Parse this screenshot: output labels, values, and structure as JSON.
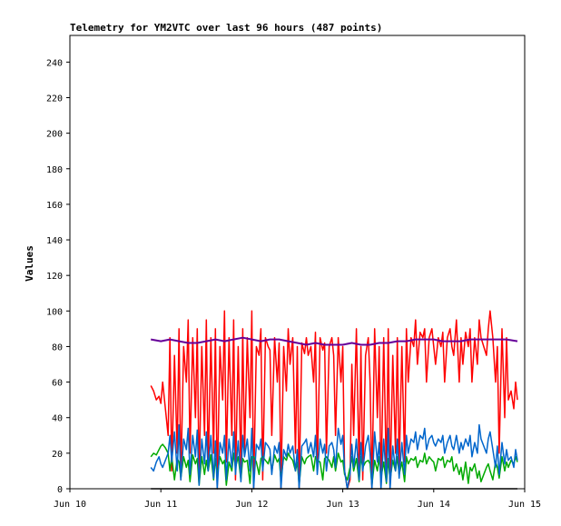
{
  "chart_data": {
    "type": "line",
    "title": "Telemetry for YM2VTC over last 96 hours (487 points)",
    "ylabel": "Values",
    "xlabel": "",
    "ylim": [
      0,
      255
    ],
    "xlim": [
      0,
      5
    ],
    "x_unit": "days since Jun 10",
    "yticks": [
      0,
      20,
      40,
      60,
      80,
      100,
      120,
      140,
      160,
      180,
      200,
      220,
      240
    ],
    "yticks_labels": [
      "0",
      "20",
      "40",
      "60",
      "80",
      "100",
      "120",
      "140",
      "160",
      "180",
      "200",
      "220",
      "240"
    ],
    "xticks": [
      0,
      1,
      2,
      3,
      4,
      5
    ],
    "xticks_labels": [
      "Jun 10",
      "Jun 11",
      "Jun 12",
      "Jun 13",
      "Jun 14",
      "Jun 15"
    ],
    "grid": false,
    "legend": "none",
    "series": [
      {
        "color": "#ff0000",
        "x": [
          0.89,
          0.92,
          0.95,
          0.98,
          1.0,
          1.02,
          1.05,
          1.08,
          1.1,
          1.12,
          1.15,
          1.18,
          1.2,
          1.22,
          1.25,
          1.28,
          1.3,
          1.32,
          1.35,
          1.38,
          1.4,
          1.42,
          1.45,
          1.48,
          1.5,
          1.52,
          1.55,
          1.58,
          1.6,
          1.62,
          1.65,
          1.68,
          1.7,
          1.72,
          1.75,
          1.78,
          1.8,
          1.82,
          1.85,
          1.88,
          1.9,
          1.92,
          1.95,
          1.98,
          2.0,
          2.02,
          2.05,
          2.08,
          2.1,
          2.12,
          2.15,
          2.18,
          2.2,
          2.22,
          2.25,
          2.28,
          2.3,
          2.32,
          2.35,
          2.38,
          2.4,
          2.42,
          2.45,
          2.48,
          2.5,
          2.52,
          2.55,
          2.58,
          2.6,
          2.62,
          2.65,
          2.68,
          2.7,
          2.72,
          2.75,
          2.78,
          2.8,
          2.82,
          2.85,
          2.88,
          2.9,
          2.92,
          2.95,
          2.98,
          3.0,
          3.02,
          3.05,
          3.08,
          3.1,
          3.12,
          3.15,
          3.18,
          3.2,
          3.22,
          3.25,
          3.28,
          3.3,
          3.32,
          3.35,
          3.38,
          3.4,
          3.42,
          3.45,
          3.48,
          3.5,
          3.52,
          3.55,
          3.58,
          3.6,
          3.62,
          3.65,
          3.68,
          3.7,
          3.72,
          3.75,
          3.78,
          3.8,
          3.82,
          3.85,
          3.88,
          3.9,
          3.92,
          3.95,
          3.98,
          4.0,
          4.02,
          4.05,
          4.08,
          4.1,
          4.12,
          4.15,
          4.18,
          4.2,
          4.22,
          4.25,
          4.28,
          4.3,
          4.32,
          4.35,
          4.38,
          4.4,
          4.42,
          4.45,
          4.48,
          4.5,
          4.52,
          4.55,
          4.58,
          4.6,
          4.62,
          4.65,
          4.68,
          4.7,
          4.72,
          4.75,
          4.78,
          4.8,
          4.82,
          4.85,
          4.88,
          4.9,
          4.92
        ],
        "values": [
          58,
          55,
          50,
          52,
          48,
          60,
          45,
          30,
          85,
          10,
          75,
          20,
          90,
          5,
          80,
          60,
          95,
          20,
          85,
          40,
          90,
          5,
          80,
          30,
          95,
          10,
          85,
          20,
          90,
          0,
          80,
          50,
          100,
          15,
          85,
          30,
          95,
          5,
          80,
          10,
          90,
          20,
          85,
          40,
          100,
          0,
          80,
          75,
          90,
          5,
          85,
          80,
          78,
          30,
          85,
          60,
          82,
          0,
          80,
          55,
          90,
          70,
          85,
          20,
          80,
          0,
          82,
          76,
          85,
          75,
          80,
          60,
          88,
          10,
          85,
          78,
          82,
          20,
          80,
          85,
          75,
          30,
          85,
          60,
          80,
          10,
          0,
          5,
          70,
          30,
          90,
          10,
          80,
          5,
          75,
          85,
          60,
          0,
          90,
          40,
          80,
          0,
          85,
          5,
          90,
          0,
          75,
          20,
          85,
          10,
          80,
          15,
          90,
          60,
          85,
          80,
          95,
          70,
          88,
          85,
          90,
          60,
          85,
          90,
          80,
          70,
          85,
          80,
          88,
          60,
          85,
          90,
          80,
          75,
          95,
          60,
          85,
          70,
          88,
          80,
          90,
          60,
          85,
          70,
          95,
          85,
          80,
          75,
          90,
          100,
          85,
          60,
          80,
          20,
          90,
          40,
          85,
          50,
          55,
          45,
          60,
          50
        ]
      },
      {
        "color": "#00aa00",
        "x": [
          0.89,
          0.92,
          0.95,
          0.98,
          1.0,
          1.02,
          1.05,
          1.08,
          1.1,
          1.12,
          1.15,
          1.18,
          1.2,
          1.22,
          1.25,
          1.28,
          1.3,
          1.32,
          1.35,
          1.38,
          1.4,
          1.42,
          1.45,
          1.48,
          1.5,
          1.52,
          1.55,
          1.58,
          1.6,
          1.62,
          1.65,
          1.68,
          1.7,
          1.72,
          1.75,
          1.78,
          1.8,
          1.82,
          1.85,
          1.88,
          1.9,
          1.92,
          1.95,
          1.98,
          2.0,
          2.02,
          2.05,
          2.08,
          2.1,
          2.12,
          2.15,
          2.18,
          2.2,
          2.22,
          2.25,
          2.28,
          2.3,
          2.32,
          2.35,
          2.38,
          2.4,
          2.42,
          2.45,
          2.48,
          2.5,
          2.52,
          2.55,
          2.58,
          2.6,
          2.62,
          2.65,
          2.68,
          2.7,
          2.72,
          2.75,
          2.78,
          2.8,
          2.82,
          2.85,
          2.88,
          2.9,
          2.92,
          2.95,
          2.98,
          3.0,
          3.02,
          3.05,
          3.08,
          3.1,
          3.12,
          3.15,
          3.18,
          3.2,
          3.22,
          3.25,
          3.28,
          3.3,
          3.32,
          3.35,
          3.38,
          3.4,
          3.42,
          3.45,
          3.48,
          3.5,
          3.52,
          3.55,
          3.58,
          3.6,
          3.62,
          3.65,
          3.68,
          3.7,
          3.72,
          3.75,
          3.78,
          3.8,
          3.82,
          3.85,
          3.88,
          3.9,
          3.92,
          3.95,
          3.98,
          4.0,
          4.02,
          4.05,
          4.08,
          4.1,
          4.12,
          4.15,
          4.18,
          4.2,
          4.22,
          4.25,
          4.28,
          4.3,
          4.32,
          4.35,
          4.38,
          4.4,
          4.42,
          4.45,
          4.48,
          4.5,
          4.52,
          4.55,
          4.58,
          4.6,
          4.62,
          4.65,
          4.68,
          4.7,
          4.72,
          4.75,
          4.78,
          4.8,
          4.82,
          4.85,
          4.88,
          4.9,
          4.92
        ],
        "values": [
          18,
          20,
          19,
          22,
          24,
          25,
          23,
          20,
          10,
          18,
          5,
          17,
          15,
          6,
          18,
          12,
          16,
          4,
          19,
          14,
          17,
          2,
          18,
          8,
          16,
          10,
          19,
          5,
          17,
          8,
          18,
          14,
          16,
          2,
          15,
          10,
          20,
          12,
          18,
          5,
          17,
          15,
          16,
          3,
          18,
          18,
          15,
          8,
          17,
          18,
          16,
          14,
          18,
          10,
          19,
          15,
          17,
          5,
          18,
          16,
          20,
          18,
          16,
          10,
          15,
          2,
          18,
          14,
          17,
          18,
          19,
          10,
          18,
          16,
          15,
          5,
          17,
          18,
          16,
          12,
          18,
          10,
          20,
          15,
          16,
          8,
          5,
          12,
          18,
          10,
          17,
          4,
          18,
          12,
          15,
          16,
          14,
          2,
          16,
          10,
          18,
          6,
          15,
          3,
          17,
          5,
          16,
          10,
          18,
          8,
          15,
          4,
          18,
          14,
          17,
          16,
          18,
          12,
          16,
          15,
          20,
          14,
          18,
          16,
          15,
          10,
          17,
          16,
          18,
          12,
          16,
          15,
          18,
          10,
          14,
          8,
          12,
          5,
          15,
          3,
          12,
          10,
          14,
          6,
          10,
          4,
          8,
          12,
          14,
          10,
          5,
          15,
          12,
          6,
          18,
          10,
          15,
          12,
          16,
          14,
          18,
          15
        ]
      },
      {
        "color": "#0066cc",
        "x": [
          0.89,
          0.92,
          0.95,
          0.98,
          1.0,
          1.02,
          1.05,
          1.08,
          1.1,
          1.12,
          1.15,
          1.18,
          1.2,
          1.22,
          1.25,
          1.28,
          1.3,
          1.32,
          1.35,
          1.38,
          1.4,
          1.42,
          1.45,
          1.48,
          1.5,
          1.52,
          1.55,
          1.58,
          1.6,
          1.62,
          1.65,
          1.68,
          1.7,
          1.72,
          1.75,
          1.78,
          1.8,
          1.82,
          1.85,
          1.88,
          1.9,
          1.92,
          1.95,
          1.98,
          2.0,
          2.02,
          2.05,
          2.08,
          2.1,
          2.12,
          2.15,
          2.18,
          2.2,
          2.22,
          2.25,
          2.28,
          2.3,
          2.32,
          2.35,
          2.38,
          2.4,
          2.42,
          2.45,
          2.48,
          2.5,
          2.52,
          2.55,
          2.58,
          2.6,
          2.62,
          2.65,
          2.68,
          2.7,
          2.72,
          2.75,
          2.78,
          2.8,
          2.82,
          2.85,
          2.88,
          2.9,
          2.92,
          2.95,
          2.98,
          3.0,
          3.02,
          3.05,
          3.08,
          3.1,
          3.12,
          3.15,
          3.18,
          3.2,
          3.22,
          3.25,
          3.28,
          3.3,
          3.32,
          3.35,
          3.38,
          3.4,
          3.42,
          3.45,
          3.48,
          3.5,
          3.52,
          3.55,
          3.58,
          3.6,
          3.62,
          3.65,
          3.68,
          3.7,
          3.72,
          3.75,
          3.78,
          3.8,
          3.82,
          3.85,
          3.88,
          3.9,
          3.92,
          3.95,
          3.98,
          4.0,
          4.02,
          4.05,
          4.08,
          4.1,
          4.12,
          4.15,
          4.18,
          4.2,
          4.22,
          4.25,
          4.28,
          4.3,
          4.32,
          4.35,
          4.38,
          4.4,
          4.42,
          4.45,
          4.48,
          4.5,
          4.52,
          4.55,
          4.58,
          4.6,
          4.62,
          4.65,
          4.68,
          4.7,
          4.72,
          4.75,
          4.78,
          4.8,
          4.82,
          4.85,
          4.88,
          4.9,
          4.92
        ],
        "values": [
          12,
          10,
          15,
          18,
          14,
          12,
          16,
          20,
          30,
          15,
          32,
          10,
          36,
          5,
          28,
          22,
          34,
          8,
          30,
          18,
          33,
          2,
          28,
          14,
          32,
          10,
          30,
          6,
          27,
          0,
          26,
          20,
          30,
          5,
          28,
          12,
          32,
          8,
          27,
          4,
          30,
          18,
          28,
          10,
          34,
          0,
          25,
          22,
          28,
          10,
          26,
          24,
          22,
          8,
          24,
          20,
          26,
          0,
          22,
          18,
          25,
          20,
          24,
          10,
          22,
          0,
          24,
          26,
          28,
          20,
          26,
          18,
          30,
          8,
          28,
          20,
          25,
          10,
          24,
          26,
          22,
          12,
          34,
          25,
          30,
          10,
          0,
          8,
          25,
          12,
          28,
          5,
          26,
          10,
          24,
          30,
          20,
          0,
          32,
          15,
          26,
          0,
          28,
          4,
          34,
          0,
          24,
          10,
          28,
          6,
          26,
          8,
          30,
          20,
          28,
          26,
          32,
          22,
          30,
          28,
          34,
          22,
          28,
          30,
          26,
          24,
          28,
          26,
          30,
          20,
          26,
          30,
          24,
          22,
          30,
          20,
          26,
          22,
          28,
          24,
          30,
          18,
          26,
          20,
          36,
          28,
          24,
          20,
          28,
          32,
          22,
          12,
          24,
          8,
          26,
          14,
          22,
          16,
          18,
          12,
          22,
          16
        ]
      },
      {
        "color": "#660099",
        "x": [
          0.89,
          1.0,
          1.1,
          1.2,
          1.3,
          1.4,
          1.5,
          1.6,
          1.7,
          1.8,
          1.9,
          2.0,
          2.1,
          2.2,
          2.3,
          2.4,
          2.5,
          2.6,
          2.7,
          2.8,
          2.9,
          3.0,
          3.1,
          3.2,
          3.3,
          3.4,
          3.5,
          3.6,
          3.7,
          3.8,
          3.9,
          4.0,
          4.1,
          4.2,
          4.3,
          4.4,
          4.5,
          4.6,
          4.7,
          4.8,
          4.92
        ],
        "values": [
          84,
          83,
          84,
          83,
          82,
          82,
          83,
          84,
          83,
          84,
          85,
          84,
          83,
          84,
          84,
          83,
          82,
          81,
          82,
          81,
          81,
          81,
          82,
          81,
          81,
          82,
          82,
          83,
          83,
          84,
          84,
          84,
          83,
          83,
          83,
          84,
          84,
          84,
          84,
          84,
          83
        ]
      },
      {
        "color": "#000000",
        "x": [
          0.89,
          4.92
        ],
        "values": [
          0,
          0
        ]
      }
    ]
  }
}
